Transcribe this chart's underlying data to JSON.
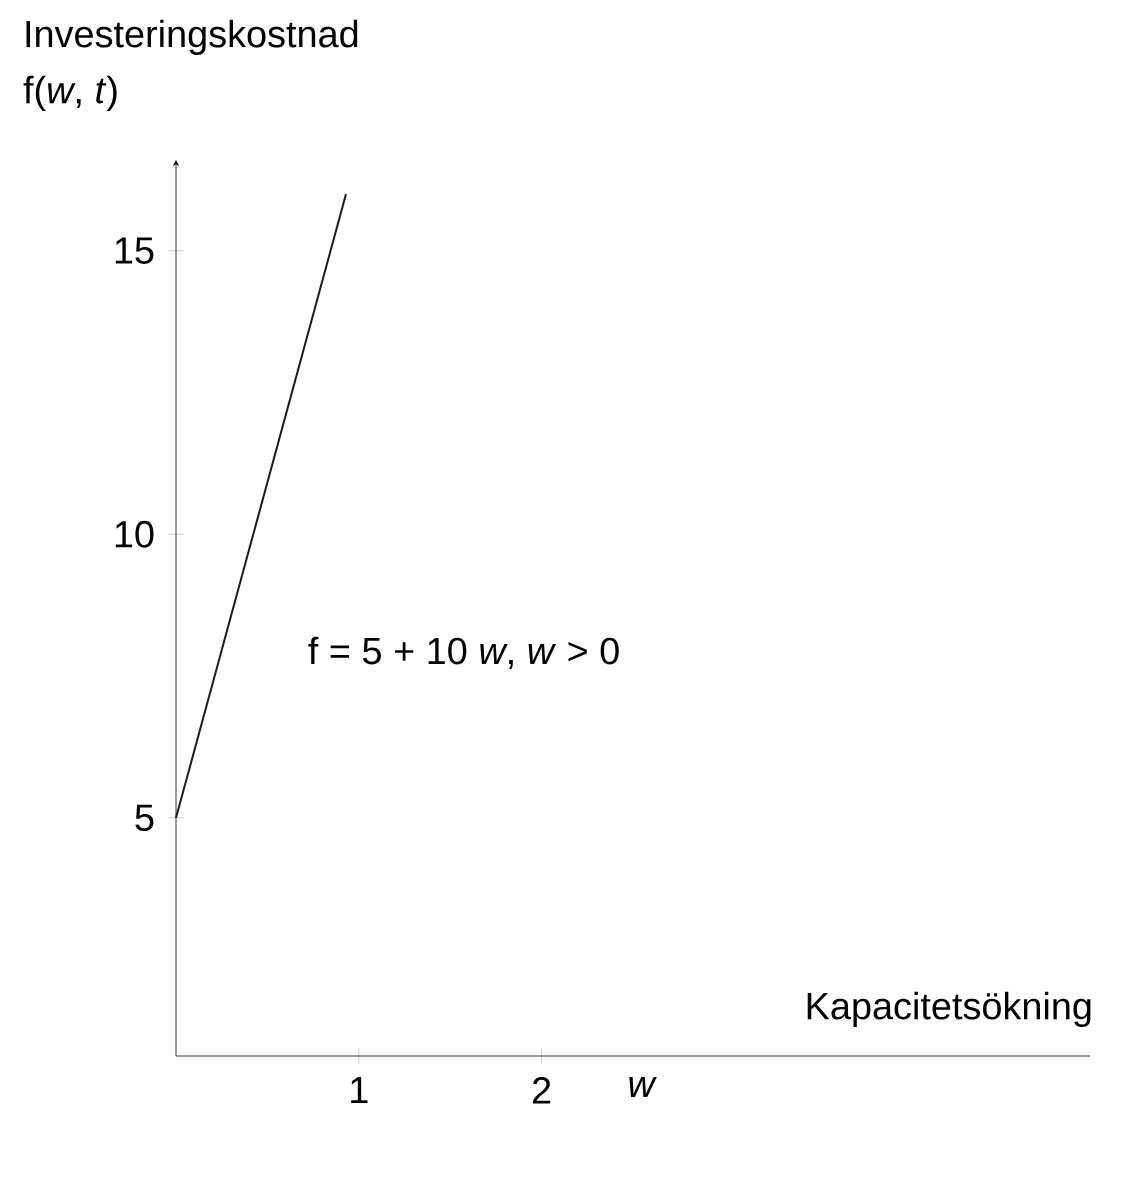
{
  "chart_data": {
    "type": "line",
    "xlabel": "Kapacitetsökning",
    "ylabel": "Investeringskostnad",
    "annotations": [
      "f(*w*, *t*)",
      "*w*",
      "f = 5 + 10 *w*,  *w* > 0"
    ],
    "x": [
      0,
      0.93
    ],
    "values": [
      5,
      16
    ],
    "color": "#1a1a1a",
    "xlim": [
      0,
      5
    ],
    "ylim": [
      0.8,
      16.6
    ],
    "xticks": [
      1,
      2
    ],
    "yticks": [
      5,
      10,
      15
    ]
  }
}
